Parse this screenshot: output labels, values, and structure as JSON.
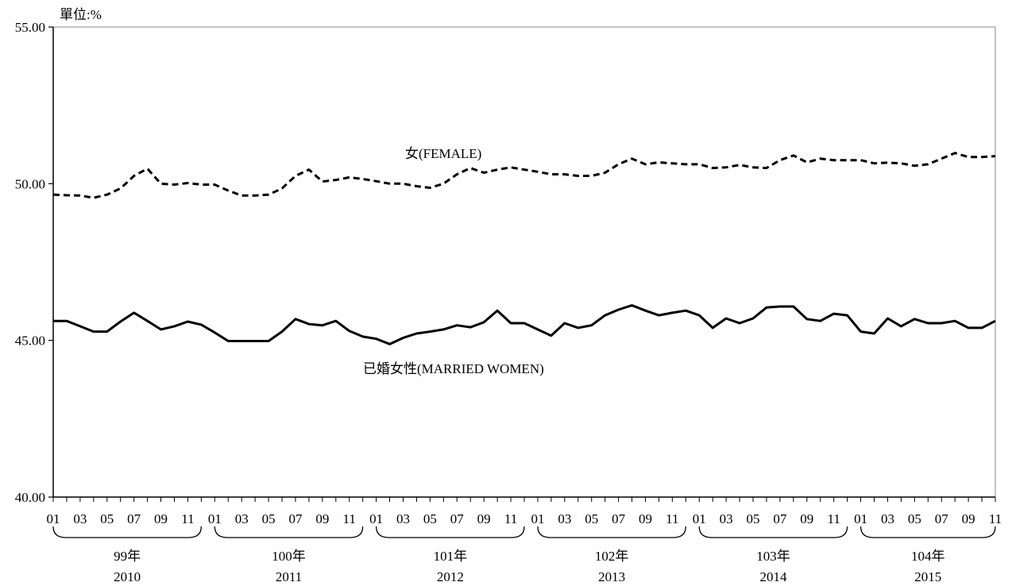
{
  "chart_data": {
    "type": "line",
    "unit_label": "單位:%",
    "ylim": [
      40,
      55
    ],
    "y_ticks": [
      "40.00",
      "45.00",
      "50.00",
      "55.00"
    ],
    "x_tick_labels": [
      "01",
      "03",
      "05",
      "07",
      "09",
      "11"
    ],
    "years": [
      {
        "roc": "99年",
        "ad": "2010"
      },
      {
        "roc": "100年",
        "ad": "2011"
      },
      {
        "roc": "101年",
        "ad": "2012"
      },
      {
        "roc": "102年",
        "ad": "2013"
      },
      {
        "roc": "103年",
        "ad": "2014"
      },
      {
        "roc": "104年",
        "ad": "2015"
      }
    ],
    "series": [
      {
        "name": "女(FEMALE)",
        "style": "dashed",
        "color": "#000000",
        "values": [
          49.65,
          49.63,
          49.62,
          49.55,
          49.65,
          49.85,
          50.25,
          50.48,
          50.0,
          49.97,
          50.02,
          49.97,
          49.97,
          49.78,
          49.62,
          49.62,
          49.65,
          49.85,
          50.25,
          50.45,
          50.07,
          50.12,
          50.2,
          50.15,
          50.08,
          50.0,
          50.0,
          49.92,
          49.87,
          50.0,
          50.3,
          50.5,
          50.35,
          50.45,
          50.52,
          50.45,
          50.38,
          50.3,
          50.3,
          50.25,
          50.25,
          50.35,
          50.62,
          50.8,
          50.62,
          50.68,
          50.65,
          50.62,
          50.62,
          50.5,
          50.52,
          50.6,
          50.52,
          50.5,
          50.75,
          50.9,
          50.68,
          50.8,
          50.75,
          50.75,
          50.75,
          50.65,
          50.67,
          50.65,
          50.57,
          50.62,
          50.8,
          50.98,
          50.85,
          50.85,
          50.88
        ]
      },
      {
        "name": "已婚女性(MARRIED  WOMEN)",
        "style": "solid",
        "color": "#000000",
        "values": [
          45.62,
          45.62,
          45.45,
          45.28,
          45.28,
          45.6,
          45.88,
          45.62,
          45.35,
          45.45,
          45.6,
          45.5,
          45.25,
          44.98,
          44.98,
          44.98,
          44.98,
          45.28,
          45.68,
          45.52,
          45.48,
          45.62,
          45.3,
          45.12,
          45.05,
          44.88,
          45.08,
          45.22,
          45.28,
          45.35,
          45.48,
          45.42,
          45.58,
          45.95,
          45.55,
          45.55,
          45.35,
          45.15,
          45.55,
          45.4,
          45.48,
          45.8,
          45.98,
          46.12,
          45.95,
          45.8,
          45.88,
          45.95,
          45.8,
          45.4,
          45.7,
          45.55,
          45.7,
          46.05,
          46.08,
          46.08,
          45.68,
          45.62,
          45.85,
          45.8,
          45.28,
          45.22,
          45.7,
          45.45,
          45.68,
          45.55,
          45.55,
          45.62,
          45.4,
          45.4,
          45.62
        ]
      }
    ]
  }
}
